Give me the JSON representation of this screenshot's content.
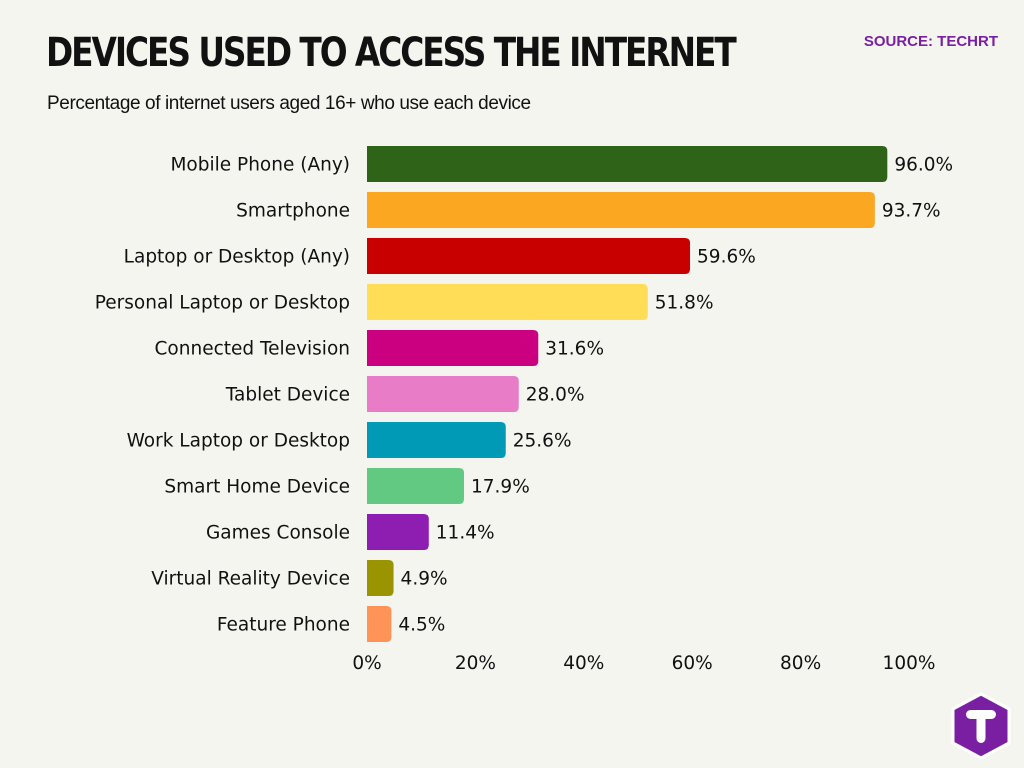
{
  "header": {
    "title": "DEVICES USED TO ACCESS THE INTERNET",
    "subtitle": "Percentage of internet users aged 16+ who use each device",
    "source": "SOURCE: TECHRT"
  },
  "logo": {
    "icon": "t-hexagon-logo-icon",
    "color": "#7a1fa2"
  },
  "chart_data": {
    "type": "bar",
    "orientation": "horizontal",
    "categories": [
      "Mobile Phone (Any)",
      "Smartphone",
      "Laptop or Desktop (Any)",
      "Personal Laptop or Desktop",
      "Connected Television",
      "Tablet Device",
      "Work Laptop or Desktop",
      "Smart Home Device",
      "Games Console",
      "Virtual Reality Device",
      "Feature Phone"
    ],
    "values": [
      96.0,
      93.7,
      59.6,
      51.8,
      31.6,
      28.0,
      25.6,
      17.9,
      11.4,
      4.9,
      4.5
    ],
    "value_labels": [
      "96.0%",
      "93.7%",
      "59.6%",
      "51.8%",
      "31.6%",
      "28.0%",
      "25.6%",
      "17.9%",
      "11.4%",
      "4.9%",
      "4.5%"
    ],
    "colors": [
      "#2e6318",
      "#fca722",
      "#c90000",
      "#ffdd57",
      "#cb0081",
      "#e97cc6",
      "#009ab7",
      "#62c983",
      "#8d1eb1",
      "#999400",
      "#ff9358"
    ],
    "xlim": [
      0,
      100
    ],
    "xticks": [
      0,
      20,
      40,
      60,
      80,
      100
    ],
    "xtick_labels": [
      "0%",
      "20%",
      "40%",
      "60%",
      "80%",
      "100%"
    ],
    "grid": false,
    "legend": "none"
  }
}
